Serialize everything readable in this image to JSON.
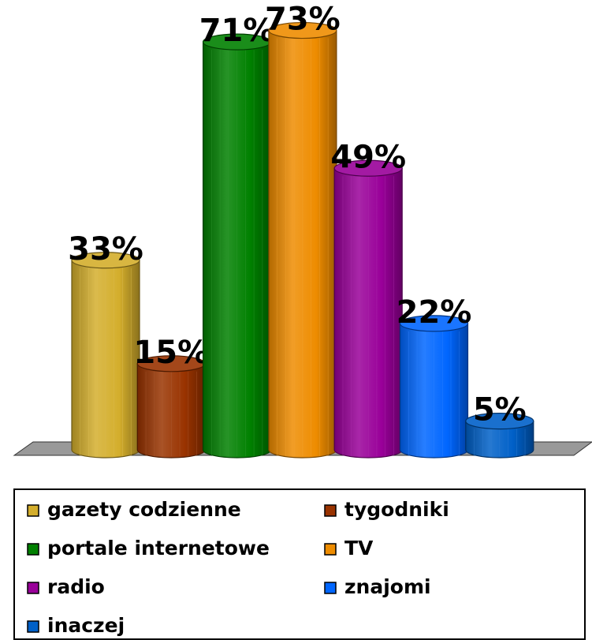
{
  "chart_data": {
    "type": "bar",
    "series": [
      {
        "name": "gazety codzienne",
        "color": "#d4ae2c",
        "values": [
          33
        ],
        "value_labels": [
          "33%"
        ]
      },
      {
        "name": "tygodniki",
        "color": "#993300",
        "values": [
          15
        ],
        "value_labels": [
          "15%"
        ]
      },
      {
        "name": "portale internetowe",
        "color": "#008000",
        "values": [
          71
        ],
        "value_labels": [
          "71%"
        ]
      },
      {
        "name": "TV",
        "color": "#ee8c00",
        "values": [
          73
        ],
        "value_labels": [
          "73%"
        ]
      },
      {
        "name": "radio",
        "color": "#990099",
        "values": [
          49
        ],
        "value_labels": [
          "49%"
        ]
      },
      {
        "name": "znajomi",
        "color": "#0066ff",
        "values": [
          22
        ],
        "value_labels": [
          "22%"
        ]
      },
      {
        "name": "inaczej",
        "color": "#0060c8",
        "values": [
          5
        ],
        "value_labels": [
          "5%"
        ]
      }
    ]
  }
}
